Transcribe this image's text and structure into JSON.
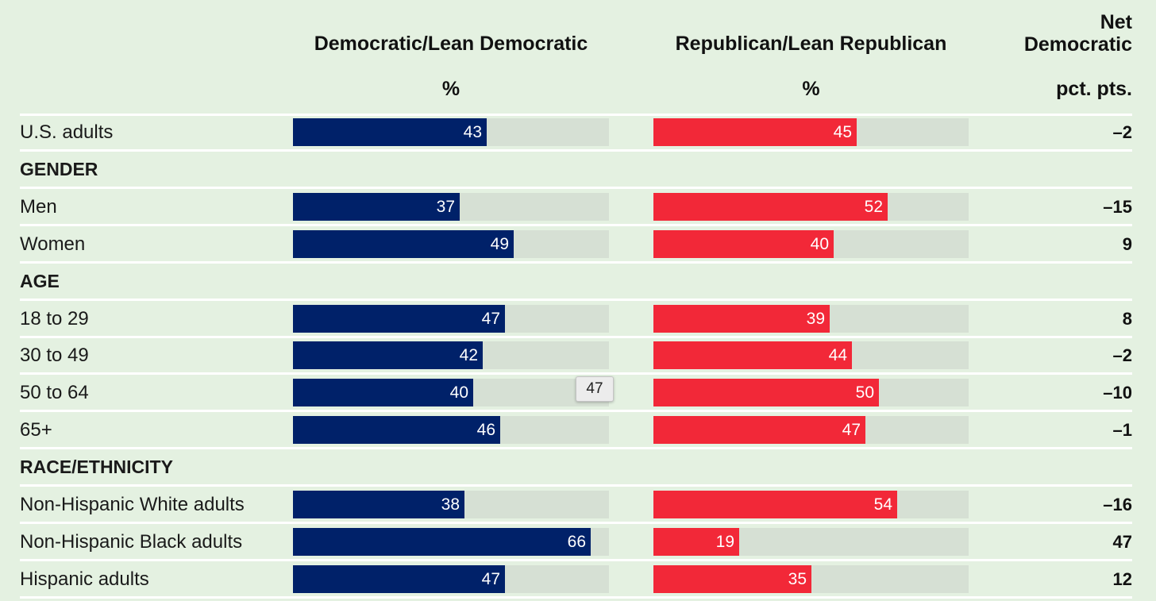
{
  "chart_data": {
    "type": "bar",
    "headers": {
      "democratic": "Democratic/Lean Democratic",
      "republican": "Republican/Lean Republican",
      "net_line1": "Net",
      "net_line2": "Democratic",
      "dem_unit": "%",
      "rep_unit": "%",
      "net_unit": "pct. pts."
    },
    "xlim": [
      0,
      70
    ],
    "colors": {
      "democratic": "#002169",
      "republican": "#f22838",
      "track": "#d6e0d4",
      "background": "#e4f1e1"
    },
    "rows": [
      {
        "kind": "data",
        "label": "U.S. adults",
        "dem": 43,
        "rep": 45,
        "net": "–2"
      },
      {
        "kind": "section",
        "label": "GENDER"
      },
      {
        "kind": "data",
        "label": "Men",
        "dem": 37,
        "rep": 52,
        "net": "–15"
      },
      {
        "kind": "data",
        "label": "Women",
        "dem": 49,
        "rep": 40,
        "net": "9"
      },
      {
        "kind": "section",
        "label": "AGE"
      },
      {
        "kind": "data",
        "label": "18 to 29",
        "dem": 47,
        "rep": 39,
        "net": "8"
      },
      {
        "kind": "data",
        "label": "30 to 49",
        "dem": 42,
        "rep": 44,
        "net": "–2"
      },
      {
        "kind": "data",
        "label": "50 to 64",
        "dem": 40,
        "rep": 50,
        "net": "–10"
      },
      {
        "kind": "data",
        "label": "65+",
        "dem": 46,
        "rep": 47,
        "net": "–1"
      },
      {
        "kind": "section",
        "label": "RACE/ETHNICITY"
      },
      {
        "kind": "data",
        "label": "Non-Hispanic White adults",
        "dem": 38,
        "rep": 54,
        "net": "–16"
      },
      {
        "kind": "data",
        "label": "Non-Hispanic Black adults",
        "dem": 66,
        "rep": 19,
        "net": "47"
      },
      {
        "kind": "data",
        "label": "Hispanic adults",
        "dem": 47,
        "rep": 35,
        "net": "12"
      }
    ],
    "tooltip": "47"
  }
}
